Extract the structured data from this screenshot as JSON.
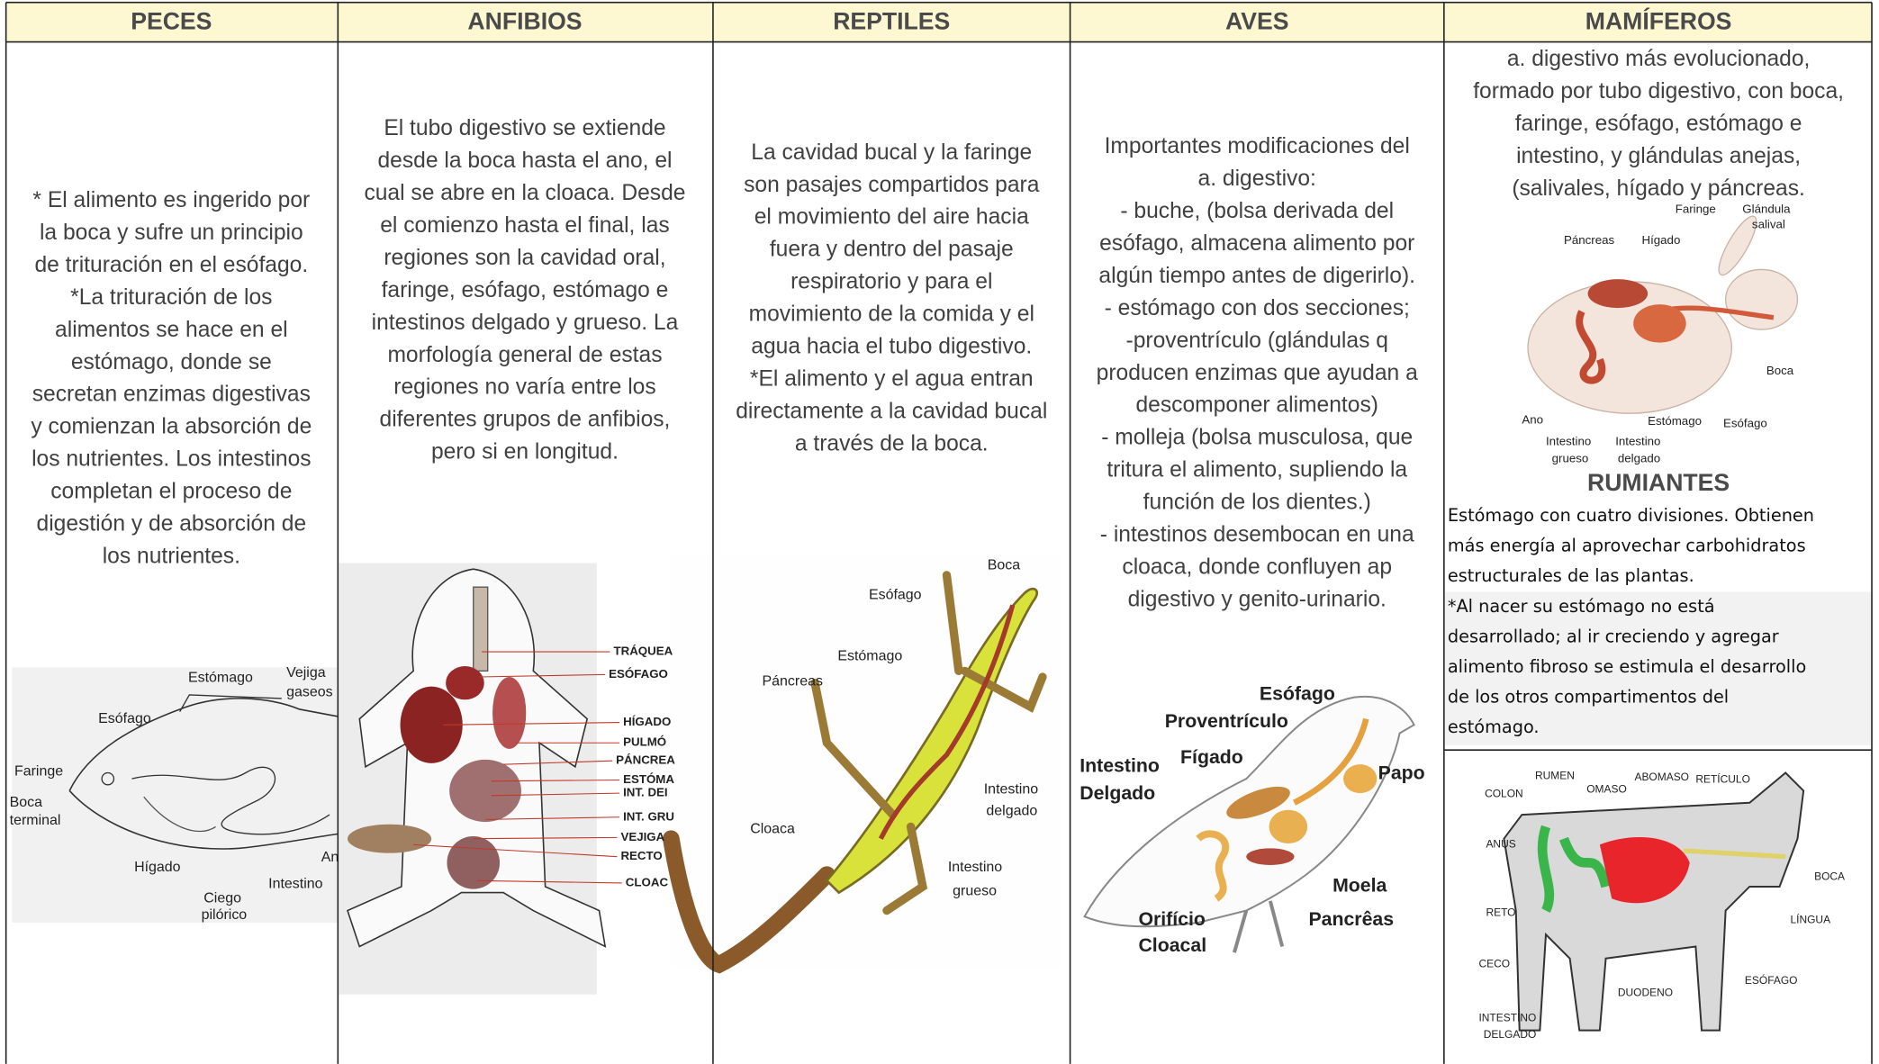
{
  "columns": [
    {
      "header": "PECES",
      "lines": [
        "* El alimento es ingerido por",
        "la boca y sufre un principio",
        "de trituración en el esófago.",
        "*La trituración de los",
        "alimentos se hace en el",
        "estómago, donde se",
        "secretan enzimas digestivas",
        "y comienzan la absorción de",
        "los nutrientes. Los intestinos",
        "completan el proceso de",
        "digestión y de absorción de",
        "los nutrientes."
      ],
      "figure_labels": [
        "Estómago",
        "Vejiga",
        "gaseos",
        "Esófago",
        "Faringe",
        "Boca",
        "terminal",
        "Hígado",
        "Ciego",
        "pilórico",
        "Intestino",
        "An"
      ]
    },
    {
      "header": "ANFIBIOS",
      "lines": [
        "El tubo digestivo se extiende",
        "desde la boca hasta el ano, el",
        "cual se abre en la cloaca. Desde",
        "el comienzo hasta el final, las",
        "regiones son la cavidad oral,",
        "faringe, esófago, estómago e",
        "intestinos delgado y grueso. La",
        "morfología general de estas",
        "regiones no varía entre los",
        "diferentes grupos de anfibios,",
        "pero si en longitud."
      ],
      "figure_labels": [
        "TRÁQUEA",
        "ESÓFAGO",
        "HÍGADO",
        "PULMÓ",
        "PÁNCREA",
        "ESTÓMA",
        "INT. DEI",
        "INT. GRU",
        "VEJIGA",
        "RECTO",
        "CLOAC"
      ]
    },
    {
      "header": "REPTILES",
      "lines": [
        "La cavidad bucal y la faringe",
        "son pasajes compartidos para",
        "el movimiento del aire hacia",
        "fuera y dentro del pasaje",
        "respiratorio y para el",
        "movimiento de la comida y el",
        "agua hacia el tubo digestivo.",
        "*El alimento y el agua entran",
        "directamente a la cavidad bucal",
        "a través de la boca."
      ],
      "figure_labels": [
        "Boca",
        "Esófago",
        "Estómago",
        "Páncreas",
        "Cloaca",
        "Intestino",
        "delgado",
        "Intestino",
        "grueso"
      ]
    },
    {
      "header": "AVES",
      "lines": [
        "Importantes modificaciones del",
        "a. digestivo:",
        "- buche, (bolsa derivada del",
        "esófago, almacena alimento por",
        "algún tiempo antes de digerirlo).",
        "- estómago con dos secciones;",
        "-proventrículo (glándulas q",
        "producen enzimas que ayudan a",
        "descomponer alimentos)",
        "- molleja (bolsa musculosa, que",
        "tritura el alimento, supliendo la",
        "función de los dientes.)",
        "- intestinos desembocan en una",
        "cloaca, donde confluyen ap",
        "digestivo y genito-urinario."
      ],
      "figure_labels": [
        "Esófago",
        "Proventrículo",
        "Intestino",
        "Delgado",
        "Fígado",
        "Papo",
        "Moela",
        "Orifício",
        "Cloacal",
        "Pancrêas"
      ]
    },
    {
      "header": "MAMÍFEROS",
      "lines": [
        "a. digestivo más evolucionado,",
        "formado por tubo digestivo, con boca,",
        "faringe, esófago, estómago e",
        "intestino, y glándulas anejas,",
        "(salivales, hígado y páncreas."
      ],
      "figure_labels": [
        "Faringe",
        "Glándula",
        "salival",
        "Páncreas",
        "Hígado",
        "Boca",
        "Ano",
        "Estómago",
        "Esófago",
        "Intestino",
        "grueso",
        "Intestino",
        "delgado"
      ],
      "section": {
        "title": "RUMIANTES",
        "lines": [
          "Estómago con cuatro divisiones. Obtienen",
          "más energía al aprovechar carbohidratos",
          "estructurales de las plantas.",
          "*Al nacer su estómago no está",
          "desarrollado; al ir creciendo y agregar",
          "alimento fibroso se estimula el desarrollo",
          "de los otros compartimentos del",
          "estómago."
        ],
        "figure_labels": [
          "RUMEN",
          "OMASO",
          "ABOMASO",
          "RETÍCULO",
          "COLON",
          "ANUS",
          "BOCA",
          "RETO",
          "LÍNGUA",
          "CECO",
          "ESÓFAGO",
          "DUODENO",
          "INTESTINO",
          "DELGADO"
        ]
      }
    }
  ]
}
